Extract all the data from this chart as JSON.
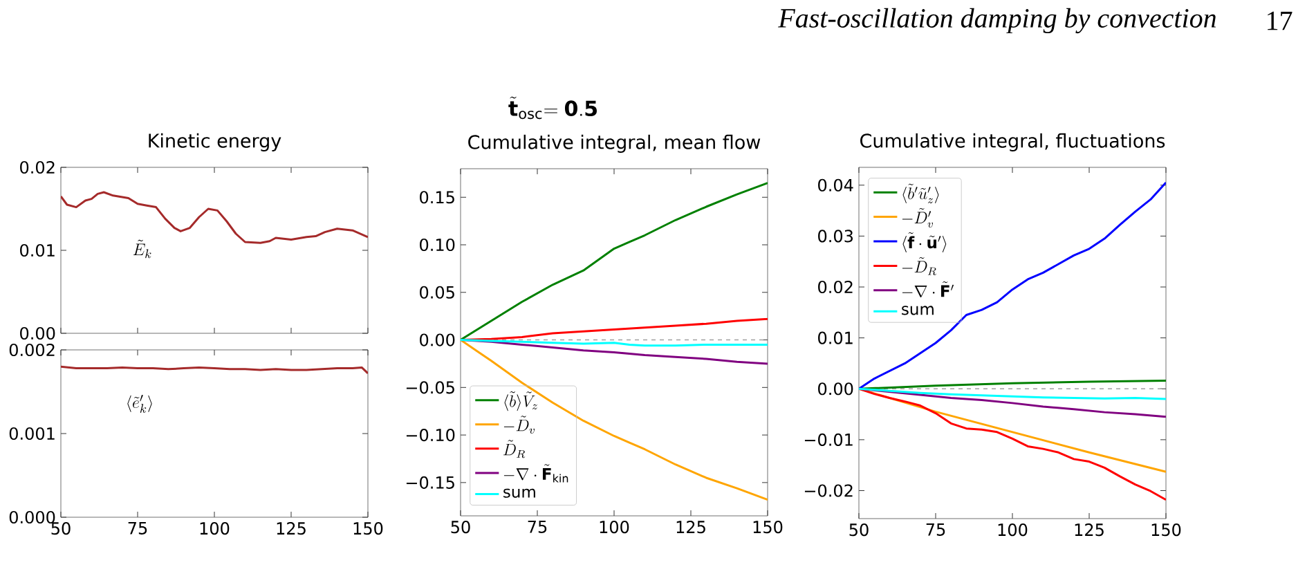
{
  "chart_data": [
    {
      "type": "line",
      "title": "Kinetic energy",
      "xlim": [
        50,
        150
      ],
      "ylim": [
        0,
        0.02
      ],
      "xticks": [
        50,
        75,
        100,
        125,
        150
      ],
      "yticks": [
        {
          "value": 0,
          "label": "0.00"
        },
        {
          "value": 0.01,
          "label": "0.01"
        },
        {
          "value": 0.02,
          "label": "0.02"
        }
      ],
      "tick_labels": "y",
      "annotations": [
        "Fast-oscillation damping by convection",
        "17",
        "\\tilde{\\mathbf{t}}_{\\mathrm{osc}}\\mathbf{=0.5}",
        "\\tilde{E}_k"
      ],
      "series": [
        {
          "color": "#a52a2a",
          "x": [
            50,
            52,
            55,
            58,
            60,
            62,
            64,
            67,
            72,
            75,
            78,
            81,
            84,
            87,
            89,
            92,
            95,
            98,
            101,
            104,
            107,
            110,
            115,
            118,
            120,
            125,
            130,
            133,
            136,
            140,
            145,
            150
          ],
          "values": [
            0.0165,
            0.0155,
            0.0152,
            0.016,
            0.0162,
            0.0168,
            0.017,
            0.0166,
            0.0163,
            0.0156,
            0.0154,
            0.0152,
            0.0138,
            0.0127,
            0.0123,
            0.0127,
            0.014,
            0.015,
            0.0148,
            0.0135,
            0.012,
            0.011,
            0.0109,
            0.0111,
            0.0115,
            0.0113,
            0.0116,
            0.0117,
            0.0122,
            0.0126,
            0.0124,
            0.0116
          ]
        }
      ]
    },
    {
      "type": "line",
      "xlim": [
        50,
        150
      ],
      "ylim": [
        0,
        0.002
      ],
      "xticks": [
        50,
        75,
        100,
        125,
        150
      ],
      "yticks": [
        {
          "value": 0,
          "label": "0.000"
        },
        {
          "value": 0.001,
          "label": "0.001"
        },
        {
          "value": 0.002,
          "label": "0.002"
        }
      ],
      "annotations": [
        "\\langle\\tilde{e}'_k\\rangle"
      ],
      "series": [
        {
          "color": "#a52a2a",
          "x": [
            50,
            55,
            60,
            65,
            70,
            75,
            80,
            85,
            90,
            95,
            100,
            105,
            110,
            115,
            120,
            125,
            130,
            135,
            140,
            145,
            148,
            150
          ],
          "values": [
            0.0018,
            0.00178,
            0.00178,
            0.00178,
            0.00179,
            0.00178,
            0.00178,
            0.00177,
            0.00178,
            0.00179,
            0.00178,
            0.00177,
            0.00177,
            0.00176,
            0.00177,
            0.00176,
            0.00176,
            0.00177,
            0.00178,
            0.00178,
            0.00179,
            0.00172
          ]
        }
      ]
    },
    {
      "type": "line",
      "title": "Cumulative integral, mean flow",
      "xlim": [
        50,
        150
      ],
      "ylim": [
        -0.185,
        0.18
      ],
      "xticks": [
        50,
        75,
        100,
        125,
        150
      ],
      "yticks": [
        {
          "value": -0.15,
          "label": "−0.15"
        },
        {
          "value": -0.1,
          "label": "−0.10"
        },
        {
          "value": -0.05,
          "label": "−0.05"
        },
        {
          "value": 0,
          "label": "0.00"
        },
        {
          "value": 0.05,
          "label": "0.05"
        },
        {
          "value": 0.1,
          "label": "0.10"
        },
        {
          "value": 0.15,
          "label": "0.15"
        }
      ],
      "legend": "bottom left",
      "ref_lines": [
        {
          "axis": "y",
          "value": 0,
          "color": "#a0a0a0",
          "line_style": "dashed"
        }
      ],
      "series": [
        {
          "name": "\\langle\\tilde{b}\\rangle\\tilde{V}_z",
          "color": "#008000",
          "x": [
            50,
            60,
            70,
            80,
            90,
            100,
            105,
            110,
            120,
            130,
            140,
            150
          ],
          "values": [
            0,
            0.02,
            0.04,
            0.058,
            0.073,
            0.096,
            0.103,
            0.11,
            0.126,
            0.14,
            0.153,
            0.165
          ]
        },
        {
          "name": "-\\tilde{D}_v",
          "color": "#ffa500",
          "x": [
            50,
            60,
            70,
            80,
            90,
            100,
            105,
            110,
            120,
            130,
            140,
            150
          ],
          "values": [
            0,
            -0.022,
            -0.045,
            -0.066,
            -0.085,
            -0.101,
            -0.108,
            -0.115,
            -0.131,
            -0.145,
            -0.156,
            -0.168
          ]
        },
        {
          "name": "\\tilde{D}_R",
          "color": "#ff0000",
          "x": [
            50,
            60,
            70,
            80,
            90,
            100,
            110,
            120,
            130,
            140,
            150
          ],
          "values": [
            0,
            0.001,
            0.003,
            0.007,
            0.009,
            0.011,
            0.013,
            0.015,
            0.017,
            0.02,
            0.022
          ]
        },
        {
          "name": "-\\nabla\\cdot\\tilde{\\mathbf{F}}_{\\mathrm{kin}}",
          "color": "#800080",
          "x": [
            50,
            60,
            70,
            80,
            90,
            100,
            110,
            120,
            130,
            140,
            150
          ],
          "values": [
            0,
            -0.002,
            -0.005,
            -0.008,
            -0.011,
            -0.013,
            -0.016,
            -0.018,
            -0.02,
            -0.023,
            -0.025
          ]
        },
        {
          "name": "sum",
          "color": "#00ffff",
          "x": [
            50,
            60,
            70,
            80,
            90,
            100,
            105,
            110,
            120,
            130,
            140,
            150
          ],
          "values": [
            0,
            -0.001,
            -0.002,
            -0.003,
            -0.004,
            -0.003,
            -0.005,
            -0.006,
            -0.006,
            -0.005,
            -0.005,
            -0.005
          ]
        }
      ]
    },
    {
      "type": "line",
      "title": "Cumulative integral, fluctuations",
      "xlim": [
        50,
        150
      ],
      "ylim": [
        -0.0255,
        0.0435
      ],
      "xticks": [
        50,
        75,
        100,
        125,
        150
      ],
      "yticks": [
        {
          "value": -0.02,
          "label": "−0.02"
        },
        {
          "value": -0.01,
          "label": "−0.01"
        },
        {
          "value": 0,
          "label": "0.00"
        },
        {
          "value": 0.01,
          "label": "0.01"
        },
        {
          "value": 0.02,
          "label": "0.02"
        },
        {
          "value": 0.03,
          "label": "0.03"
        },
        {
          "value": 0.04,
          "label": "0.04"
        }
      ],
      "legend": "top left",
      "ref_lines": [
        {
          "axis": "y",
          "value": 0,
          "color": "#a0a0a0",
          "line_style": "dashed"
        }
      ],
      "series": [
        {
          "name": "\\langle\\tilde{b}'\\tilde{u}'_z\\rangle",
          "color": "#008000",
          "x": [
            50,
            75,
            100,
            125,
            150
          ],
          "values": [
            0,
            0.0006,
            0.0011,
            0.0014,
            0.0016
          ]
        },
        {
          "name": "-\\tilde{D}'_v",
          "color": "#ffa500",
          "x": [
            50,
            75,
            100,
            125,
            150
          ],
          "values": [
            0,
            -0.0045,
            -0.0085,
            -0.0125,
            -0.0163
          ]
        },
        {
          "name": "\\langle\\tilde{\\mathbf{f}}\\cdot\\tilde{\\mathbf{u}}'\\rangle",
          "color": "#0000ff",
          "x": [
            50,
            55,
            60,
            65,
            70,
            75,
            80,
            85,
            90,
            95,
            100,
            105,
            110,
            115,
            120,
            125,
            130,
            135,
            140,
            145,
            150
          ],
          "values": [
            0,
            0.002,
            0.0035,
            0.005,
            0.007,
            0.009,
            0.0115,
            0.0145,
            0.0155,
            0.017,
            0.0195,
            0.0215,
            0.0228,
            0.0245,
            0.0262,
            0.0275,
            0.0295,
            0.0322,
            0.0348,
            0.0372,
            0.0405
          ]
        },
        {
          "name": "-\\tilde{D}_R",
          "color": "#ff0000",
          "x": [
            50,
            55,
            60,
            65,
            70,
            75,
            80,
            85,
            90,
            95,
            100,
            105,
            110,
            115,
            120,
            125,
            130,
            135,
            140,
            145,
            150
          ],
          "values": [
            0,
            -0.001,
            -0.0018,
            -0.0025,
            -0.0033,
            -0.0048,
            -0.0068,
            -0.0078,
            -0.008,
            -0.0085,
            -0.0098,
            -0.0113,
            -0.0118,
            -0.0125,
            -0.0138,
            -0.0143,
            -0.0155,
            -0.0172,
            -0.0188,
            -0.0201,
            -0.0218
          ]
        },
        {
          "name": "-\\nabla\\cdot\\tilde{\\mathbf{F}}'",
          "color": "#800080",
          "x": [
            50,
            60,
            70,
            80,
            90,
            100,
            110,
            120,
            130,
            140,
            150
          ],
          "values": [
            0,
            -0.0006,
            -0.0012,
            -0.0018,
            -0.0022,
            -0.0028,
            -0.0035,
            -0.004,
            -0.0046,
            -0.005,
            -0.0055
          ]
        },
        {
          "name": "sum",
          "color": "#00ffff",
          "x": [
            50,
            60,
            70,
            80,
            90,
            100,
            110,
            120,
            130,
            140,
            145,
            150
          ],
          "values": [
            0,
            -0.0004,
            -0.0008,
            -0.0011,
            -0.0013,
            -0.0015,
            -0.0017,
            -0.0018,
            -0.0019,
            -0.0018,
            -0.0019,
            -0.002
          ]
        }
      ]
    }
  ]
}
